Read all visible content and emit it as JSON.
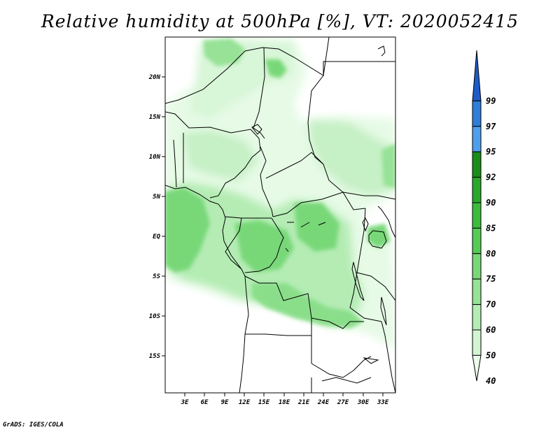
{
  "title": "Relative humidity at 500hPa [%], VT: 2020052415",
  "footer": "GrADS: IGES/COLA",
  "map": {
    "lat_labels": [
      "20N",
      "15N",
      "10N",
      "5N",
      "EQ",
      "5S",
      "10S",
      "15S"
    ],
    "lon_labels": [
      "3E",
      "6E",
      "9E",
      "12E",
      "15E",
      "18E",
      "21E",
      "24E",
      "27E",
      "30E",
      "33E"
    ]
  },
  "colorbar": {
    "labels": [
      "99",
      "97",
      "95",
      "92",
      "90",
      "85",
      "80",
      "75",
      "70",
      "60",
      "50",
      "40"
    ],
    "colors": [
      "#1e5ac8",
      "#2f7ed8",
      "#4fa0ec",
      "#1a8c1a",
      "#2aa82a",
      "#3cbc3c",
      "#55cc55",
      "#78d878",
      "#96e296",
      "#b4ecb4",
      "#d2f5d2",
      "#ecfcec"
    ]
  }
}
